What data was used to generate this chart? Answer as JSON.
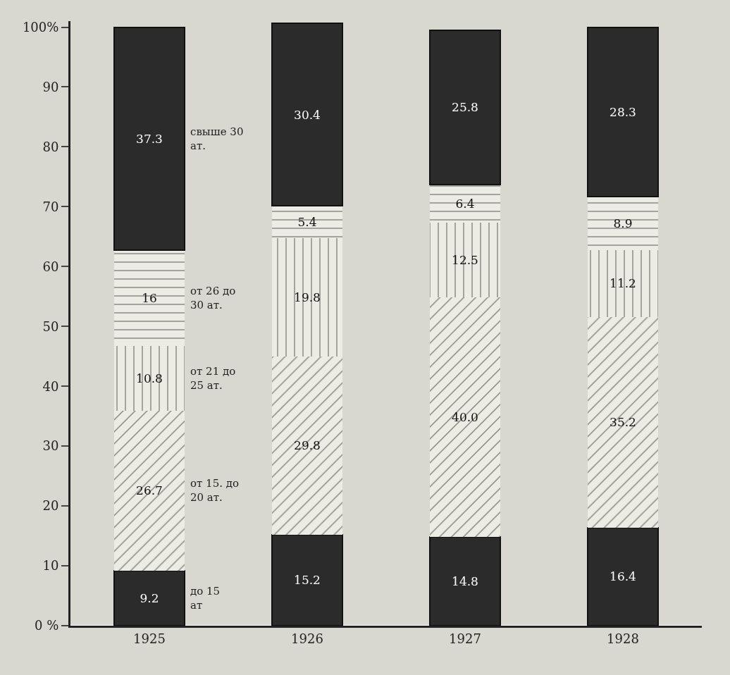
{
  "chart_data": {
    "type": "bar",
    "stacked": true,
    "categories": [
      "1925",
      "1926",
      "1927",
      "1928"
    ],
    "series": [
      {
        "name": "до 15 ат",
        "color": "#2b2b2b",
        "values": [
          9.2,
          15.2,
          14.8,
          16.4
        ],
        "value_labels": [
          "9.2",
          "15.2",
          "14.8",
          "16.4"
        ]
      },
      {
        "name": "от 15. до 20 ат.",
        "color": "#ecebe4",
        "values": [
          26.7,
          29.8,
          40.0,
          35.2
        ],
        "value_labels": [
          "26.7",
          "29.8",
          "40.0",
          "35.2"
        ]
      },
      {
        "name": "от 21 до 25 ат.",
        "color": "#ecebe4",
        "values": [
          10.8,
          19.8,
          12.5,
          11.2
        ],
        "value_labels": [
          "10.8",
          "19.8",
          "12.5",
          "11.2"
        ]
      },
      {
        "name": "от 26 до 30 ат.",
        "color": "#ecebe4",
        "values": [
          16,
          5.4,
          6.4,
          8.9
        ],
        "value_labels": [
          "16",
          "5.4",
          "6.4",
          "8.9"
        ]
      },
      {
        "name": "свыше 30 ат.",
        "color": "#2b2b2b",
        "values": [
          37.3,
          30.4,
          25.8,
          28.3
        ],
        "value_labels": [
          "37.3",
          "30.4",
          "25.8",
          "28.3"
        ]
      }
    ],
    "ylim": [
      0,
      101
    ],
    "yticks": [
      {
        "value": 0,
        "label": "0 %"
      },
      10,
      20,
      30,
      40,
      50,
      60,
      70,
      80,
      90,
      {
        "value": 100,
        "label": "100%"
      }
    ],
    "grid": false
  }
}
